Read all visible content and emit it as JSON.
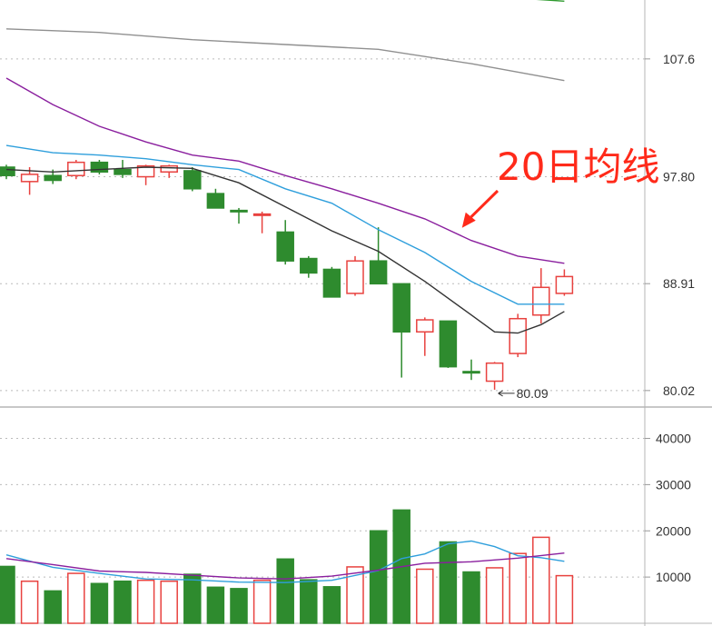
{
  "colors": {
    "up": "#e8423f",
    "down": "#2e8b2e",
    "ma5": "#333333",
    "ma10": "#2f9fdc",
    "ma20": "#8a1f9e",
    "ma_gray": "#909090",
    "ma_green": "#2e9a2e",
    "vol_ma5": "#2f9fdc",
    "vol_ma10": "#8a1f9e",
    "annotation": "#ff2a1a",
    "grid": "#bbbbbb"
  },
  "annotation": {
    "text": "20日均线",
    "target_series": "ma20"
  },
  "low_label": {
    "text": "80.09",
    "value": 80.09,
    "candle_index": 21
  },
  "chart_data": [
    {
      "type": "candlestick",
      "title": "",
      "yticks": [
        "107.6",
        "97.80",
        "88.91",
        "80.02"
      ],
      "ylim": [
        78.8,
        112.5
      ],
      "grid": true,
      "categories": [
        0,
        1,
        2,
        3,
        4,
        5,
        6,
        7,
        8,
        9,
        10,
        11,
        12,
        13,
        14,
        15,
        16,
        17,
        18,
        19,
        20,
        21,
        22,
        23,
        24
      ],
      "candles": [
        {
          "open": 98.6,
          "high": 98.8,
          "low": 97.6,
          "close": 97.9,
          "dir": "down"
        },
        {
          "open": 97.4,
          "high": 98.6,
          "low": 96.3,
          "close": 98.0,
          "dir": "up"
        },
        {
          "open": 97.9,
          "high": 98.4,
          "low": 97.2,
          "close": 97.5,
          "dir": "down"
        },
        {
          "open": 97.9,
          "high": 99.2,
          "low": 97.6,
          "close": 99.0,
          "dir": "up"
        },
        {
          "open": 99.0,
          "high": 99.2,
          "low": 98.0,
          "close": 98.2,
          "dir": "down"
        },
        {
          "open": 98.4,
          "high": 99.2,
          "low": 97.7,
          "close": 98.0,
          "dir": "down"
        },
        {
          "open": 97.8,
          "high": 98.8,
          "low": 97.1,
          "close": 98.7,
          "dir": "up"
        },
        {
          "open": 98.2,
          "high": 98.8,
          "low": 97.7,
          "close": 98.7,
          "dir": "up"
        },
        {
          "open": 98.3,
          "high": 98.6,
          "low": 96.6,
          "close": 96.8,
          "dir": "down"
        },
        {
          "open": 96.4,
          "high": 96.8,
          "low": 95.2,
          "close": 95.2,
          "dir": "down"
        },
        {
          "open": 95.0,
          "high": 95.2,
          "low": 93.9,
          "close": 94.9,
          "dir": "down"
        },
        {
          "open": 94.6,
          "high": 94.9,
          "low": 93.1,
          "close": 94.7,
          "dir": "up"
        },
        {
          "open": 93.2,
          "high": 94.2,
          "low": 90.5,
          "close": 90.8,
          "dir": "down"
        },
        {
          "open": 91.0,
          "high": 91.2,
          "low": 89.4,
          "close": 89.8,
          "dir": "down"
        },
        {
          "open": 90.1,
          "high": 90.3,
          "low": 87.8,
          "close": 87.8,
          "dir": "down"
        },
        {
          "open": 88.1,
          "high": 91.2,
          "low": 87.9,
          "close": 90.8,
          "dir": "up"
        },
        {
          "open": 90.8,
          "high": 93.6,
          "low": 88.9,
          "close": 88.9,
          "dir": "down"
        },
        {
          "open": 88.9,
          "high": 88.9,
          "low": 81.1,
          "close": 84.9,
          "dir": "down"
        },
        {
          "open": 84.9,
          "high": 86.1,
          "low": 82.9,
          "close": 85.9,
          "dir": "up"
        },
        {
          "open": 85.8,
          "high": 85.8,
          "low": 81.9,
          "close": 82.0,
          "dir": "down"
        },
        {
          "open": 81.6,
          "high": 82.6,
          "low": 80.9,
          "close": 81.6,
          "dir": "down"
        },
        {
          "open": 80.8,
          "high": 82.4,
          "low": 80.09,
          "close": 82.3,
          "dir": "up"
        },
        {
          "open": 83.1,
          "high": 86.4,
          "low": 82.8,
          "close": 86.0,
          "dir": "up"
        },
        {
          "open": 86.3,
          "high": 90.2,
          "low": 85.6,
          "close": 88.6,
          "dir": "up"
        },
        {
          "open": 88.1,
          "high": 90.1,
          "low": 87.9,
          "close": 89.5,
          "dir": "up"
        }
      ],
      "series": [
        {
          "key": "ma5",
          "x": [
            0,
            2,
            4,
            6,
            8,
            10,
            12,
            14,
            16,
            18,
            20,
            21,
            22,
            23,
            24
          ],
          "values": [
            98.4,
            98.2,
            98.4,
            98.6,
            98.5,
            97.3,
            95.3,
            93.3,
            91.6,
            89.1,
            86.3,
            84.9,
            84.8,
            85.5,
            86.6
          ]
        },
        {
          "key": "ma10",
          "x": [
            0,
            2,
            4,
            6,
            8,
            10,
            12,
            14,
            16,
            18,
            20,
            22,
            24
          ],
          "values": [
            100.4,
            99.8,
            99.6,
            99.3,
            98.8,
            98.4,
            96.8,
            95.6,
            93.4,
            91.5,
            89.1,
            87.2,
            87.2
          ]
        },
        {
          "key": "ma20",
          "x": [
            0,
            2,
            4,
            6,
            8,
            10,
            12,
            14,
            16,
            18,
            20,
            22,
            24
          ],
          "values": [
            106.0,
            103.8,
            102.0,
            100.7,
            99.6,
            99.1,
            97.9,
            96.8,
            95.6,
            94.3,
            92.5,
            91.2,
            90.6
          ]
        },
        {
          "key": "ma_gray",
          "x": [
            0,
            4,
            8,
            12,
            16,
            20,
            24
          ],
          "values": [
            110.1,
            109.8,
            109.2,
            108.8,
            108.4,
            107.2,
            105.8
          ]
        },
        {
          "key": "ma_green",
          "x": [
            16,
            20,
            24
          ],
          "values": [
            113.5,
            112.9,
            112.4
          ]
        }
      ]
    },
    {
      "type": "bar",
      "title": "",
      "yticks": [
        "40000",
        "30000",
        "20000",
        "10000"
      ],
      "ylim": [
        0,
        46000
      ],
      "grid": true,
      "categories": [
        0,
        1,
        2,
        3,
        4,
        5,
        6,
        7,
        8,
        9,
        10,
        11,
        12,
        13,
        14,
        15,
        16,
        17,
        18,
        19,
        20,
        21,
        22,
        23,
        24
      ],
      "values": [
        12300,
        9100,
        7000,
        10800,
        8600,
        9100,
        9300,
        9100,
        10600,
        7800,
        7500,
        9300,
        13900,
        9400,
        7900,
        12200,
        20000,
        24500,
        11700,
        17600,
        11100,
        12000,
        15100,
        18600,
        10300
      ],
      "series": [
        {
          "key": "vol_ma5",
          "x": [
            0,
            2,
            4,
            6,
            8,
            10,
            12,
            14,
            16,
            17,
            18,
            19,
            20,
            21,
            22,
            23,
            24
          ],
          "values": [
            14800,
            12100,
            10800,
            9600,
            9400,
            8900,
            8800,
            9300,
            11400,
            14000,
            15000,
            17200,
            17800,
            16600,
            14600,
            14200,
            13400
          ]
        },
        {
          "key": "vol_ma10",
          "x": [
            0,
            2,
            4,
            6,
            8,
            10,
            12,
            14,
            16,
            18,
            20,
            22,
            24
          ],
          "values": [
            14000,
            12700,
            11300,
            11000,
            10400,
            9800,
            9600,
            10200,
            11500,
            13000,
            13300,
            14100,
            15200
          ]
        }
      ]
    }
  ]
}
